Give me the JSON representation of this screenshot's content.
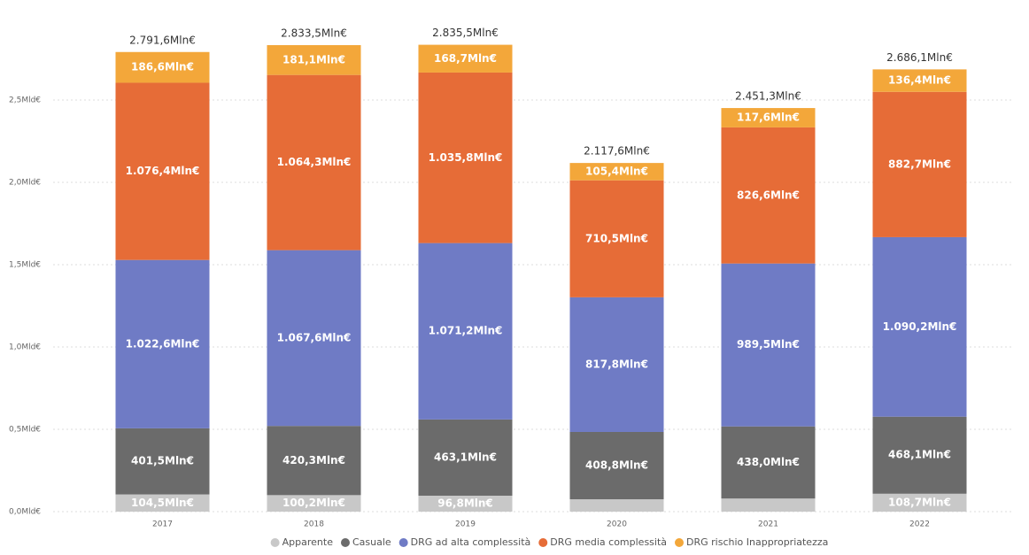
{
  "chart_data": {
    "type": "stacked_bar",
    "categories": [
      "2017",
      "2018",
      "2019",
      "2020",
      "2021",
      "2022"
    ],
    "series": [
      {
        "name": "Apparente",
        "color": "#c8c8c8",
        "values": [
          0.1045,
          0.1002,
          0.0968,
          0.0751,
          0.0796,
          0.1087
        ],
        "value_labels": [
          "104,5Mln€",
          "100,2Mln€",
          "96,8Mln€",
          null,
          null,
          "108,7Mln€"
        ]
      },
      {
        "name": "Casuale",
        "color": "#6b6b6b",
        "values": [
          0.4015,
          0.4203,
          0.4631,
          0.4088,
          0.438,
          0.4681
        ],
        "value_labels": [
          "401,5Mln€",
          "420,3Mln€",
          "463,1Mln€",
          "408,8Mln€",
          "438,0Mln€",
          "468,1Mln€"
        ]
      },
      {
        "name": "DRG ad alta complessità",
        "color": "#6f7bc5",
        "values": [
          1.0226,
          1.0676,
          1.0712,
          0.8178,
          0.9895,
          1.0902
        ],
        "value_labels": [
          "1.022,6Mln€",
          "1.067,6Mln€",
          "1.071,2Mln€",
          "817,8Mln€",
          "989,5Mln€",
          "1.090,2Mln€"
        ]
      },
      {
        "name": "DRG media complessità",
        "color": "#e66c37",
        "values": [
          1.0764,
          1.0643,
          1.0358,
          0.7105,
          0.8266,
          0.8827
        ],
        "value_labels": [
          "1.076,4Mln€",
          "1.064,3Mln€",
          "1.035,8Mln€",
          "710,5Mln€",
          "826,6Mln€",
          "882,7Mln€"
        ]
      },
      {
        "name": "DRG rischio Inappropriatezza",
        "color": "#f3a73a",
        "values": [
          0.1866,
          0.1811,
          0.1687,
          0.1054,
          0.1176,
          0.1364
        ],
        "value_labels": [
          "186,6Mln€",
          "181,1Mln€",
          "168,7Mln€",
          "105,4Mln€",
          "117,6Mln€",
          "136,4Mln€"
        ]
      }
    ],
    "totals": [
      2.7916,
      2.8335,
      2.8355,
      2.1176,
      2.4513,
      2.6861
    ],
    "total_labels": [
      "2.791,6Mln€",
      "2.833,5Mln€",
      "2.835,5Mln€",
      "2.117,6Mln€",
      "2.451,3Mln€",
      "2.686,1Mln€"
    ],
    "ylim": [
      0,
      3.0
    ],
    "yticks": [
      {
        "value": 0,
        "label": "0,0Mld€"
      },
      {
        "value": 0.5,
        "label": "0,5Mld€"
      },
      {
        "value": 1.0,
        "label": "1,0Mld€"
      },
      {
        "value": 1.5,
        "label": "1,5Mld€"
      },
      {
        "value": 2.0,
        "label": "2,0Mld€"
      },
      {
        "value": 2.5,
        "label": "2,5Mld€"
      }
    ],
    "grid": true,
    "legend": "bottom"
  }
}
